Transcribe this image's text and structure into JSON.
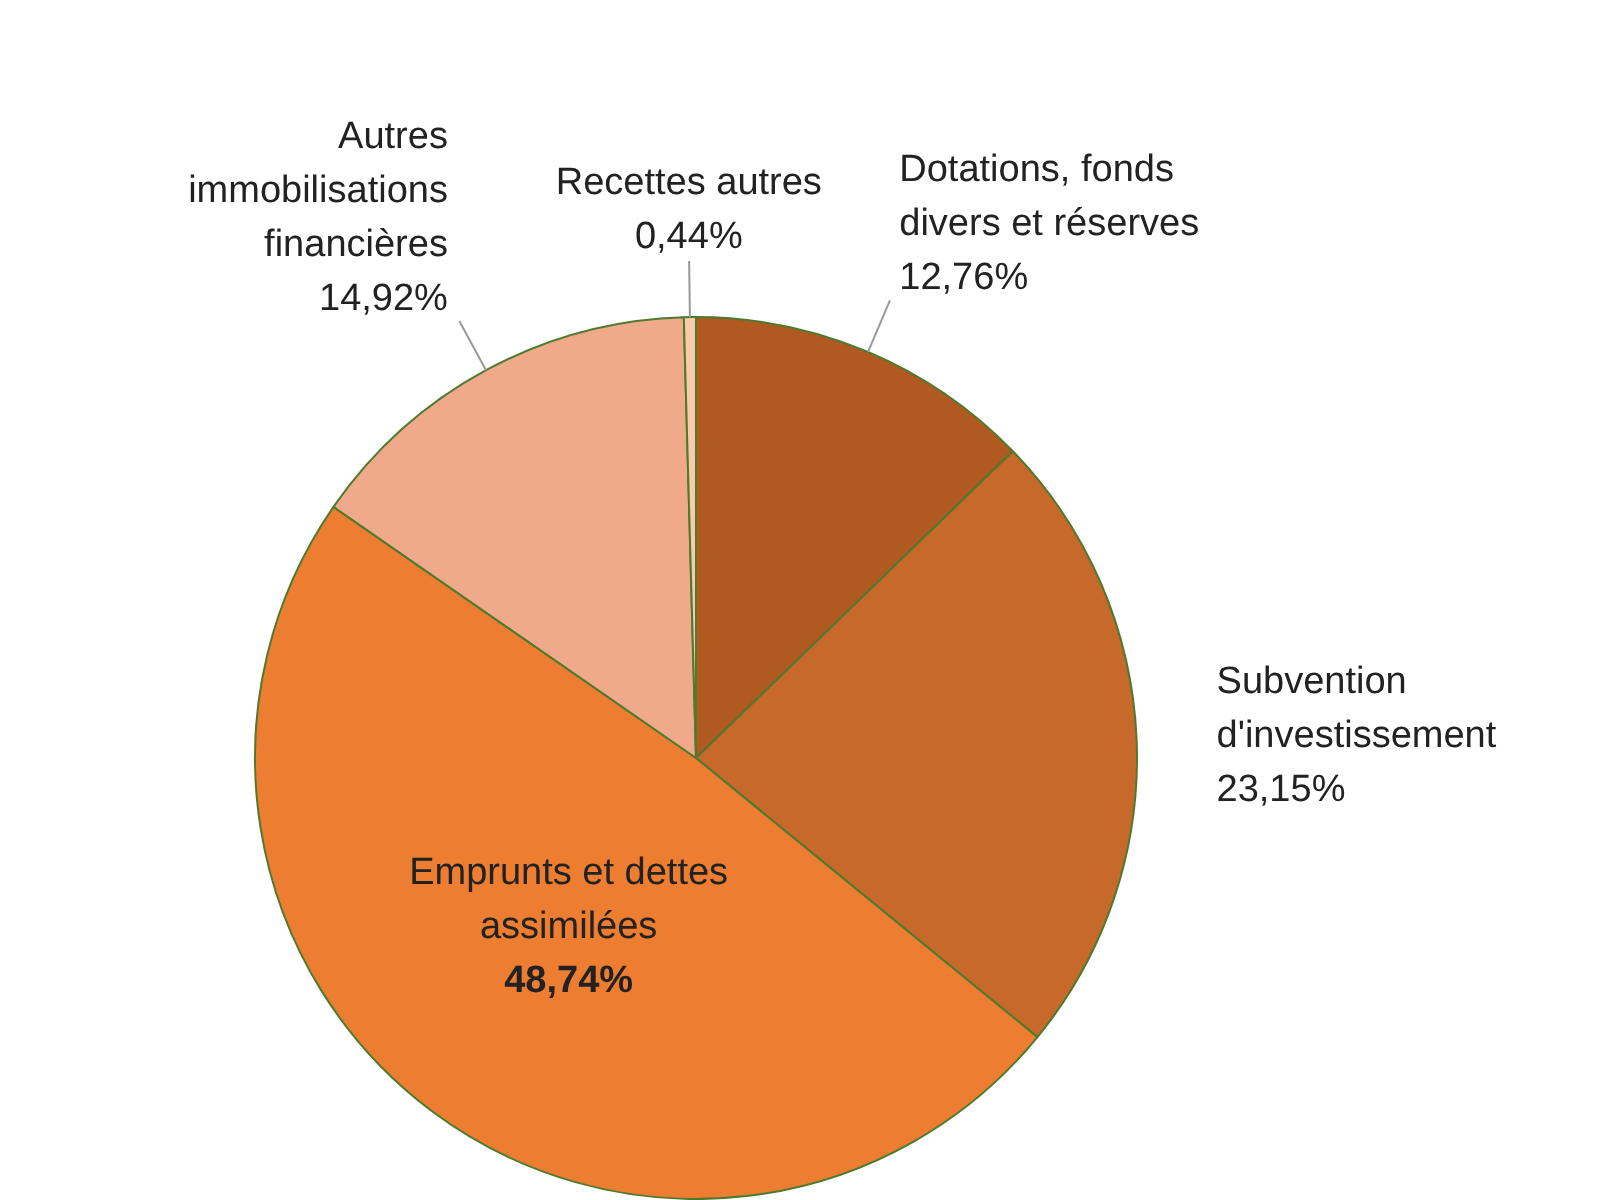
{
  "chart_data": {
    "type": "pie",
    "categories": [
      "Dotations, fonds divers et réserves",
      "Subvention d'investissement",
      "Emprunts et dettes assimilées",
      "Autres immobilisations financières",
      "Recettes autres"
    ],
    "values": [
      12.76,
      23.15,
      48.74,
      14.92,
      0.44
    ],
    "value_labels": [
      "12,76%",
      "23,15%",
      "48,74%",
      "14,92%",
      "0,44%"
    ],
    "colors": [
      "#b05a22",
      "#c8692c",
      "#ed7d31",
      "#f0a98a",
      "#f8cbad"
    ],
    "legend": false
  }
}
